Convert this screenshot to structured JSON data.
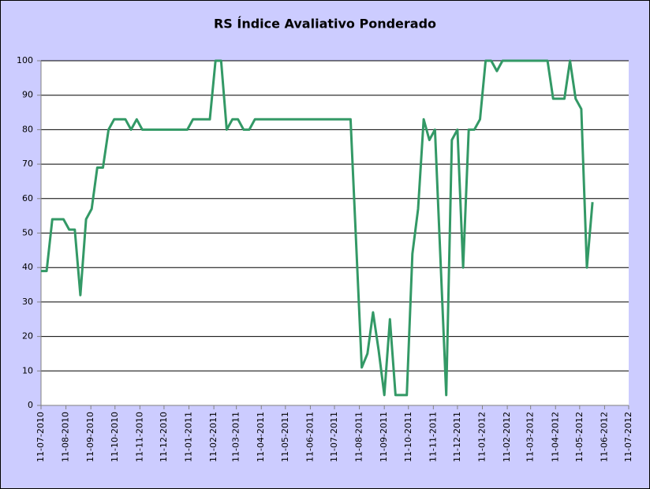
{
  "chart_data": {
    "type": "line",
    "title": "RS Índice Avaliativo Ponderado",
    "x": [
      "11-07-2010",
      "18-07-2010",
      "25-07-2010",
      "08-08-2010",
      "15-08-2010",
      "22-08-2010",
      "29-08-2010",
      "05-09-2010",
      "12-09-2010",
      "19-09-2010",
      "26-09-2010",
      "03-10-2010",
      "10-10-2010",
      "24-10-2010",
      "31-10-2010",
      "07-11-2010",
      "14-11-2010",
      "09-01-2011",
      "16-01-2011",
      "06-02-2011",
      "13-02-2011",
      "20-02-2011",
      "27-02-2011",
      "06-03-2011",
      "13-03-2011",
      "20-03-2011",
      "27-03-2011",
      "03-04-2011",
      "31-07-2011",
      "14-08-2011",
      "21-08-2011",
      "28-08-2011",
      "04-09-2011",
      "11-09-2011",
      "18-09-2011",
      "25-09-2011",
      "09-10-2011",
      "16-10-2011",
      "23-10-2011",
      "30-10-2011",
      "06-11-2011",
      "13-11-2011",
      "27-11-2011",
      "04-12-2011",
      "11-12-2011",
      "18-12-2011",
      "25-12-2011",
      "01-01-2012",
      "08-01-2012",
      "15-01-2012",
      "22-01-2012",
      "29-01-2012",
      "05-02-2012",
      "01-04-2012",
      "08-04-2012",
      "22-04-2012",
      "29-04-2012",
      "06-05-2012",
      "13-05-2012",
      "20-05-2012",
      "27-05-2012"
    ],
    "series": [
      {
        "color": "#339966",
        "values": [
          39,
          39,
          54,
          54,
          51,
          51,
          32,
          54,
          57,
          69,
          69,
          80,
          83,
          83,
          80,
          83,
          80,
          80,
          83,
          83,
          100,
          100,
          80,
          83,
          83,
          80,
          80,
          83,
          83,
          11,
          15,
          27,
          16,
          3,
          25,
          3,
          3,
          44,
          57,
          83,
          77,
          80,
          3,
          77,
          80,
          40,
          80,
          80,
          83,
          100,
          100,
          97,
          100,
          100,
          89,
          89,
          100,
          89,
          86,
          40,
          59
        ]
      }
    ],
    "xlim": [
      "11-07-2010",
      "11-07-2012"
    ],
    "xticks": [
      "11-07-2010",
      "11-08-2010",
      "11-09-2010",
      "11-10-2010",
      "11-11-2010",
      "11-12-2010",
      "11-01-2011",
      "11-02-2011",
      "11-03-2011",
      "11-04-2011",
      "11-05-2011",
      "11-06-2011",
      "11-07-2011",
      "11-08-2011",
      "11-09-2011",
      "11-10-2011",
      "11-11-2011",
      "11-12-2011",
      "11-01-2012",
      "11-02-2012",
      "11-03-2012",
      "11-04-2012",
      "11-05-2012",
      "11-06-2012",
      "11-07-2012"
    ],
    "ylim": [
      0,
      100
    ],
    "yticks": [
      0,
      10,
      20,
      30,
      40,
      50,
      60,
      70,
      80,
      90,
      100
    ],
    "grid": true
  }
}
